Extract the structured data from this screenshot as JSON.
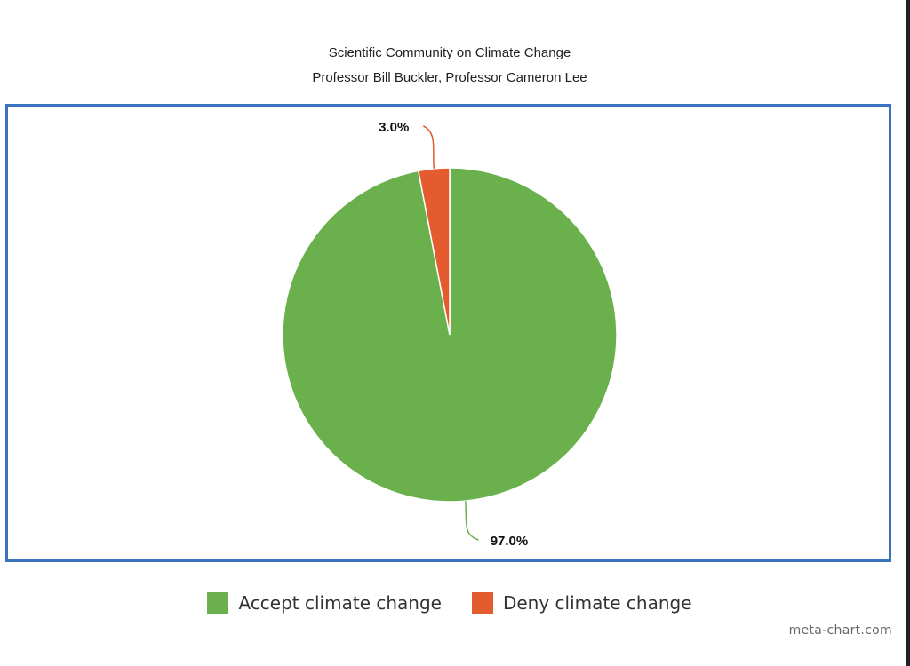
{
  "chart_data": {
    "type": "pie",
    "title": "Scientific Community on Climate Change",
    "subtitle": "Professor Bill Buckler, Professor Cameron Lee",
    "categories": [
      "Accept climate change",
      "Deny climate change"
    ],
    "values": [
      97.0,
      3.0
    ],
    "data_labels": [
      "97.0%",
      "3.0%"
    ],
    "colors": [
      "#6ab04c",
      "#e35b2f"
    ],
    "legend_position": "bottom-center",
    "grid": false
  },
  "credit": "meta-chart.com"
}
